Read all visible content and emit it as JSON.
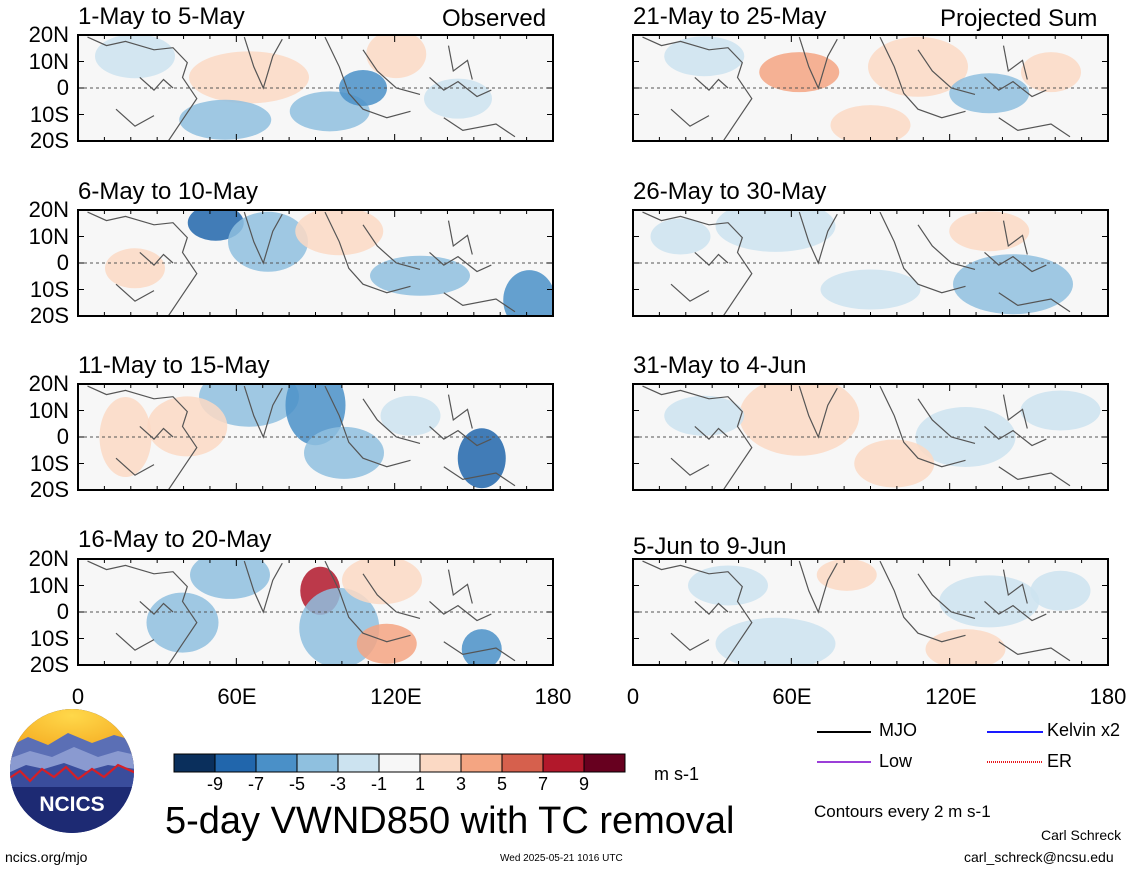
{
  "panels": {
    "left": [
      {
        "title": "1-May to 5-May",
        "tag": "Observed"
      },
      {
        "title": "6-May to 10-May",
        "tag": ""
      },
      {
        "title": "11-May to 15-May",
        "tag": ""
      },
      {
        "title": "16-May to 20-May",
        "tag": ""
      }
    ],
    "right": [
      {
        "title": "21-May to 25-May",
        "tag": "Projected Sum"
      },
      {
        "title": "26-May to 30-May",
        "tag": ""
      },
      {
        "title": "31-May to 4-Jun",
        "tag": ""
      },
      {
        "title": "5-Jun to 9-Jun",
        "tag": ""
      }
    ]
  },
  "y_ticks": [
    "20N",
    "10N",
    "0",
    "10S",
    "20S"
  ],
  "x_ticks": [
    "0",
    "60E",
    "120E",
    "180"
  ],
  "colorbar": {
    "colors": [
      "#0a2f5c",
      "#2166ac",
      "#4a90c8",
      "#8fc0df",
      "#cce3f0",
      "#f7f7f7",
      "#fbd9c4",
      "#f4a582",
      "#d6604d",
      "#b2182b",
      "#67001f"
    ],
    "labels": [
      "-9",
      "-7",
      "-5",
      "-3",
      "-1",
      "1",
      "3",
      "5",
      "7",
      "9"
    ],
    "units": "m s-1"
  },
  "legend": [
    {
      "label": "MJO",
      "color": "#000000"
    },
    {
      "label": "Kelvin x2",
      "color": "#1a1aff"
    },
    {
      "label": "Low",
      "color": "#9b3fd8"
    },
    {
      "label": "ER",
      "color": "#e6191e"
    }
  ],
  "contours_note": "Contours every 2 m s-1",
  "main_title": "5-day VWND850 with TC removal",
  "logo_text": "NCICS",
  "footer": {
    "left": "ncics.org/mjo",
    "center": "Wed 2025-05-21 1016 UTC",
    "author": "Carl Schreck",
    "email": "carl_schreck@ncsu.edu"
  }
}
